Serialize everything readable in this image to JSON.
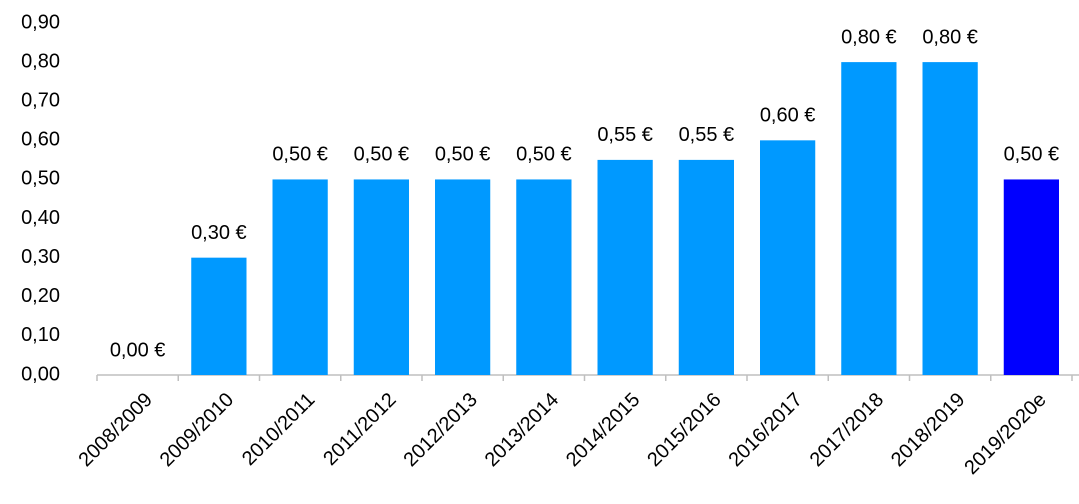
{
  "chart_data": {
    "type": "bar",
    "categories": [
      "2008/2009",
      "2009/2010",
      "2010/2011",
      "2011/2012",
      "2012/2013",
      "2013/2014",
      "2014/2015",
      "2015/2016",
      "2016/2017",
      "2017/2018",
      "2018/2019",
      "2019/2020e"
    ],
    "values": [
      0,
      0.3,
      0.5,
      0.5,
      0.5,
      0.5,
      0.55,
      0.55,
      0.6,
      0.8,
      0.8,
      0.5
    ],
    "value_labels": [
      "0,00 €",
      "0,30 €",
      "0,50 €",
      "0,50 €",
      "0,50 €",
      "0,50 €",
      "0,55 €",
      "0,55 €",
      "0,60 €",
      "0,80 €",
      "0,80 €",
      "0,50 €"
    ],
    "colors": [
      "#0099ff",
      "#0099ff",
      "#0099ff",
      "#0099ff",
      "#0099ff",
      "#0099ff",
      "#0099ff",
      "#0099ff",
      "#0099ff",
      "#0099ff",
      "#0099ff",
      "#0000ff"
    ],
    "ylim": [
      0,
      0.9
    ],
    "yticks": [
      {
        "value": 0,
        "label": "0,00"
      },
      {
        "value": 0.1,
        "label": "0,10"
      },
      {
        "value": 0.2,
        "label": "0,20"
      },
      {
        "value": 0.3,
        "label": "0,30"
      },
      {
        "value": 0.4,
        "label": "0,40"
      },
      {
        "value": 0.5,
        "label": "0,50"
      },
      {
        "value": 0.6,
        "label": "0,60"
      },
      {
        "value": 0.7,
        "label": "0,70"
      },
      {
        "value": 0.8,
        "label": "0,80"
      },
      {
        "value": 0.9,
        "label": "0,90"
      }
    ],
    "grid": false
  }
}
